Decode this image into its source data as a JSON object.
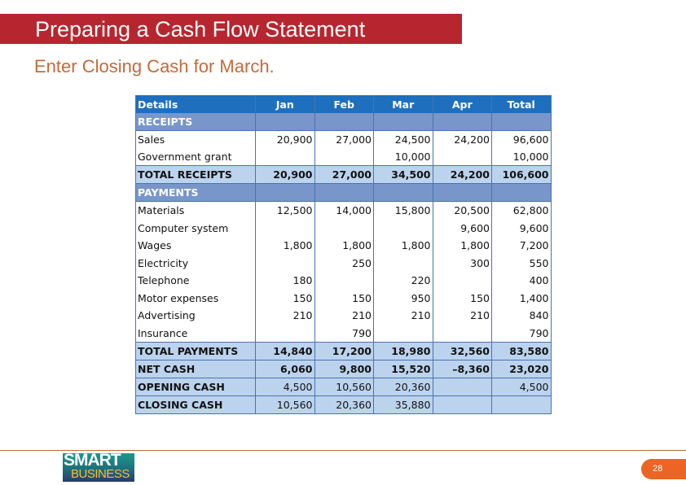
{
  "slide": {
    "title": "Preparing a Cash Flow Statement",
    "instruction": "Enter Closing Cash for March.",
    "page_number": "28",
    "logo": {
      "line1": "SMART",
      "line2": "BUSINESS"
    },
    "colors": {
      "title_bar": "#b7262f",
      "instruction_text": "#c46a3a",
      "table_header": "#1f6fbf",
      "section_row": "#7896c9",
      "total_row": "#bcd3ee",
      "page_pill": "#ec6525"
    }
  },
  "table": {
    "headers": [
      "Details",
      "Jan",
      "Feb",
      "Mar",
      "Apr",
      "Total"
    ],
    "sections": {
      "receipts": "RECEIPTS",
      "payments": "PAYMENTS"
    },
    "receipts": [
      {
        "label": "Sales",
        "jan": "20,900",
        "feb": "27,000",
        "mar": "24,500",
        "apr": "24,200",
        "total": "96,600"
      },
      {
        "label": "Government grant",
        "jan": "",
        "feb": "",
        "mar": "10,000",
        "apr": "",
        "total": "10,000"
      }
    ],
    "total_receipts": {
      "label": "TOTAL RECEIPTS",
      "jan": "20,900",
      "feb": "27,000",
      "mar": "34,500",
      "apr": "24,200",
      "total": "106,600"
    },
    "payments": [
      {
        "label": "Materials",
        "jan": "12,500",
        "feb": "14,000",
        "mar": "15,800",
        "apr": "20,500",
        "total": "62,800"
      },
      {
        "label": "Computer system",
        "jan": "",
        "feb": "",
        "mar": "",
        "apr": "9,600",
        "total": "9,600"
      },
      {
        "label": "Wages",
        "jan": "1,800",
        "feb": "1,800",
        "mar": "1,800",
        "apr": "1,800",
        "total": "7,200"
      },
      {
        "label": "Electricity",
        "jan": "",
        "feb": "250",
        "mar": "",
        "apr": "300",
        "total": "550"
      },
      {
        "label": "Telephone",
        "jan": "180",
        "feb": "",
        "mar": "220",
        "apr": "",
        "total": "400"
      },
      {
        "label": "Motor expenses",
        "jan": "150",
        "feb": "150",
        "mar": "950",
        "apr": "150",
        "total": "1,400"
      },
      {
        "label": "Advertising",
        "jan": "210",
        "feb": "210",
        "mar": "210",
        "apr": "210",
        "total": "840"
      },
      {
        "label": "Insurance",
        "jan": "",
        "feb": "790",
        "mar": "",
        "apr": "",
        "total": "790"
      }
    ],
    "total_payments": {
      "label": "TOTAL PAYMENTS",
      "jan": "14,840",
      "feb": "17,200",
      "mar": "18,980",
      "apr": "32,560",
      "total": "83,580"
    },
    "net_cash": {
      "label": "NET CASH",
      "jan": "6,060",
      "feb": "9,800",
      "mar": "15,520",
      "apr": "–8,360",
      "total": "23,020"
    },
    "opening_cash": {
      "label": "OPENING CASH",
      "jan": "4,500",
      "feb": "10,560",
      "mar": "20,360",
      "apr": "",
      "total": "4,500"
    },
    "closing_cash": {
      "label": "CLOSING CASH",
      "jan": "10,560",
      "feb": "20,360",
      "mar": "35,880",
      "apr": "",
      "total": ""
    }
  }
}
